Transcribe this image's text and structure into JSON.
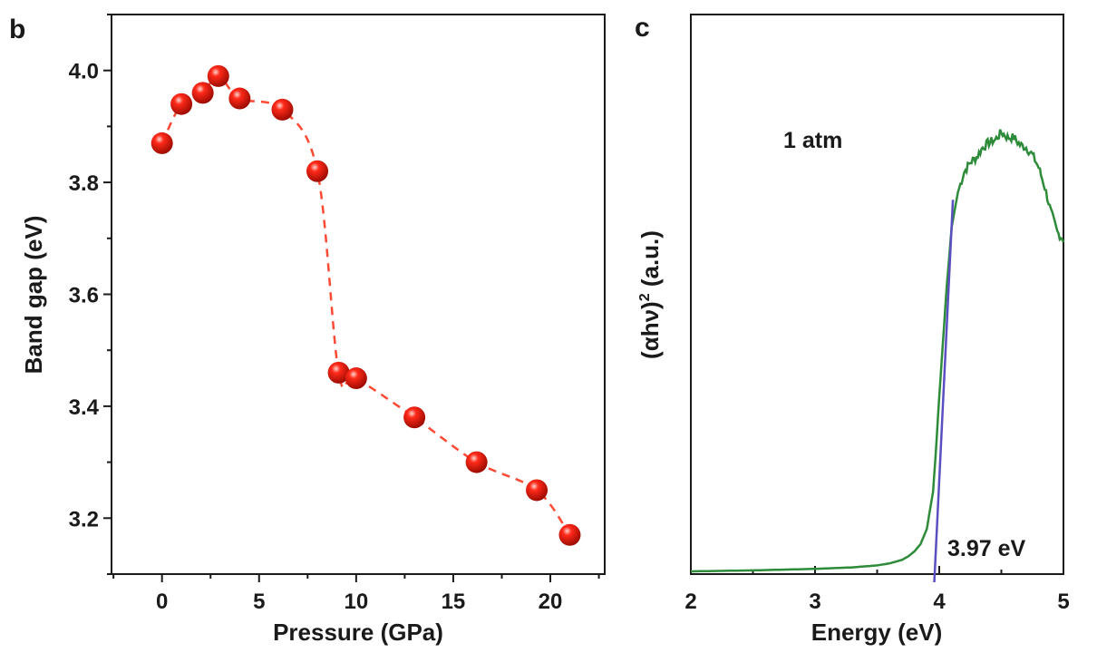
{
  "chart_data": [
    {
      "type": "scatter",
      "panel_label": "b",
      "xlabel": "Pressure (GPa)",
      "ylabel": "Band gap (eV)",
      "xlim": [
        -2.6,
        22.8
      ],
      "ylim": [
        3.1,
        4.1
      ],
      "x_ticks": [
        0,
        5,
        10,
        15,
        20
      ],
      "y_ticks": [
        3.2,
        3.4,
        3.6,
        3.8,
        4.0
      ],
      "x_tick_labels": [
        "0",
        "5",
        "10",
        "15",
        "20"
      ],
      "y_tick_labels": [
        "3.2",
        "3.4",
        "3.6",
        "3.8",
        "4.0"
      ],
      "grid": false,
      "marker_color": "#ff2a1a",
      "line_color": "#ff4a33",
      "line_style": "dashed smooth",
      "series": [
        {
          "x": [
            0.0,
            1.0,
            2.1,
            2.9,
            4.0,
            6.2,
            8.0,
            9.1,
            10.0,
            13.0,
            16.2,
            19.3,
            21.0
          ],
          "y": [
            3.87,
            3.94,
            3.96,
            3.99,
            3.95,
            3.93,
            3.82,
            3.46,
            3.45,
            3.38,
            3.3,
            3.25,
            3.17
          ]
        }
      ]
    },
    {
      "type": "line",
      "panel_label": "c",
      "xlabel": "Energy (eV)",
      "ylabel_main": "(αhν)",
      "ylabel_sup": "2",
      "ylabel_unit": " (a.u.)",
      "xlim": [
        2,
        5
      ],
      "ylim": [
        0,
        1.0
      ],
      "x_ticks": [
        2,
        3,
        4,
        5
      ],
      "x_tick_labels": [
        "2",
        "3",
        "4",
        "5"
      ],
      "grid": false,
      "annotations": {
        "condition": "1 atm",
        "gap": "3.97 eV"
      },
      "line_color": "#2e8b3a",
      "fit_color": "#5a4fc0",
      "series": [
        {
          "x": [
            2.0,
            2.5,
            3.0,
            3.3,
            3.5,
            3.6,
            3.7,
            3.75,
            3.8,
            3.85,
            3.9,
            3.95,
            3.97,
            4.0,
            4.03,
            4.06,
            4.1,
            4.15,
            4.2,
            4.25,
            4.3,
            4.35,
            4.4,
            4.45,
            4.5,
            4.55,
            4.6,
            4.65,
            4.7,
            4.75,
            4.8,
            4.85,
            4.9,
            4.95,
            5.0
          ],
          "y": [
            0.0,
            0.002,
            0.005,
            0.008,
            0.012,
            0.016,
            0.023,
            0.03,
            0.04,
            0.055,
            0.085,
            0.16,
            0.23,
            0.35,
            0.46,
            0.57,
            0.69,
            0.76,
            0.8,
            0.82,
            0.83,
            0.85,
            0.86,
            0.865,
            0.88,
            0.87,
            0.87,
            0.855,
            0.85,
            0.835,
            0.81,
            0.77,
            0.72,
            0.68,
            0.665
          ]
        }
      ],
      "fit_line": {
        "x": [
          3.96,
          4.11
        ],
        "y": [
          0.0,
          0.745
        ]
      }
    }
  ]
}
